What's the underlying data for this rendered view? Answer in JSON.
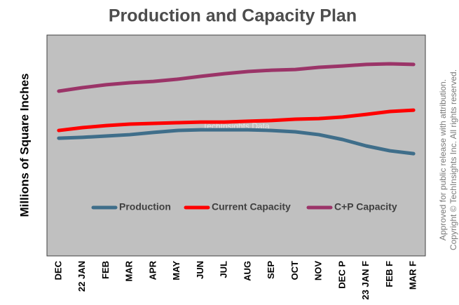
{
  "chart_data": {
    "type": "line",
    "title": "Production and Capacity Plan",
    "y_label": "Millions of Square Inches",
    "watermark": "TechInsights Data",
    "notes": [
      "Approved for public release with attribution.",
      "Copyright © TechInsights Inc.  All rights reserved."
    ],
    "categories": [
      "DEC",
      "22 JAN",
      "FEB",
      "MAR",
      "APR",
      "MAY",
      "JUN",
      "JUL",
      "AUG",
      "SEP",
      "OCT",
      "NOV",
      "DEC P",
      "23 JAN F",
      "FEB F",
      "MAR F"
    ],
    "series": [
      {
        "name": "Production",
        "color": "#3f6e8a",
        "values": [
          53.3,
          53.7,
          54.3,
          54.9,
          55.9,
          56.8,
          57.1,
          57.1,
          57.1,
          56.8,
          56.2,
          54.9,
          52.7,
          49.8,
          47.6,
          46.3
        ]
      },
      {
        "name": "Current Capacity",
        "color": "#ff0000",
        "values": [
          56.8,
          58.1,
          59.0,
          59.7,
          60.0,
          60.3,
          60.6,
          60.6,
          61.0,
          61.3,
          61.9,
          62.2,
          62.9,
          64.1,
          65.4,
          66.0
        ]
      },
      {
        "name": "C+P Capacity",
        "color": "#9b3468",
        "values": [
          74.6,
          76.2,
          77.5,
          78.4,
          79.0,
          80.0,
          81.3,
          82.5,
          83.5,
          84.1,
          84.4,
          85.4,
          86.0,
          86.7,
          87.0,
          86.7
        ]
      }
    ],
    "ylim": [
      0,
      100
    ],
    "grid": false,
    "legend": "bottom"
  }
}
